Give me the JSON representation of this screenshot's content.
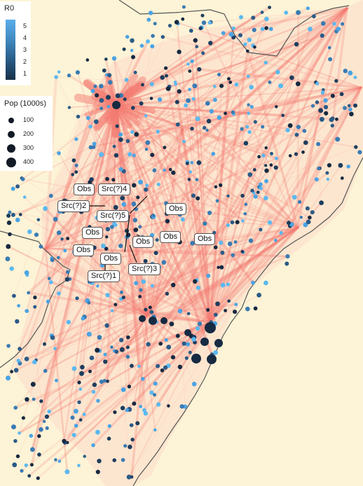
{
  "legend_r0": {
    "title": "R0",
    "ticks": [
      "5",
      "4",
      "3",
      "2",
      "1"
    ],
    "colors": [
      "#5aaeea",
      "#3f87bd",
      "#2a5e8a",
      "#173048"
    ]
  },
  "legend_pop": {
    "title": "Pop (1000s)",
    "items": [
      "100",
      "200",
      "300",
      "400"
    ]
  },
  "colors": {
    "land": "#fdf3d6",
    "region": "#fde6cf",
    "flow": "#f47b72",
    "node_dark": "#162a42",
    "node_light": "#4aa3e4",
    "border": "#555555"
  },
  "labels": {
    "obs_1": "Obs",
    "src4": "Src(?)4",
    "src2": "Src(?)2",
    "src5": "Src(?)5",
    "obs_2": "Obs",
    "obs_3": "Obs",
    "obs_4": "Obs",
    "obs_5": "Obs",
    "obs_6": "Obs",
    "obs_7": "Obs",
    "src3": "Src(?)3",
    "src1": "Src(?)1"
  }
}
